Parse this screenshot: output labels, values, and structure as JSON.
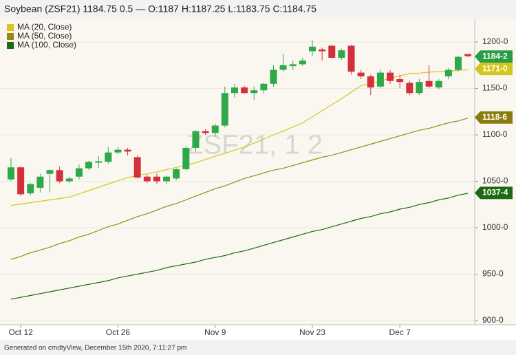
{
  "chart_data": {
    "type": "candlestick",
    "title": "Soybean (ZSF21) 1184.75 0.5 — O:1187 H:1187.25 L:1183.75 C:1184.75",
    "watermark": "ZSF21, 1 2",
    "footer": "Generated on cmdtyView, December 15th 2020, 7:11:27 pm",
    "categories": [
      null,
      "Oct 12",
      null,
      null,
      null,
      null,
      null,
      null,
      null,
      null,
      null,
      "Oct 26",
      null,
      null,
      null,
      null,
      null,
      null,
      null,
      null,
      null,
      "Nov 9",
      null,
      null,
      null,
      null,
      null,
      null,
      null,
      null,
      null,
      "Nov 23",
      null,
      null,
      null,
      null,
      null,
      null,
      null,
      null,
      "Dec 7",
      null,
      null,
      null,
      null,
      null,
      null,
      null
    ],
    "open": [
      1052,
      1065,
      1037,
      1043,
      1058,
      1062,
      1050,
      1055,
      1064,
      1070,
      1071,
      1081,
      1084,
      1076,
      1055,
      1055,
      1050,
      1053,
      1063,
      1086,
      1104,
      1102,
      1110,
      1145,
      1151,
      1145,
      1148,
      1155,
      1170,
      1174,
      1176,
      1190,
      1192,
      1196,
      1183,
      1196,
      1167,
      1163,
      1152,
      1167,
      1160,
      1156,
      1145,
      1158,
      1151,
      1163,
      1170,
      1187
    ],
    "high": [
      1075,
      1066,
      1048,
      1058,
      1063,
      1066,
      1055,
      1068,
      1072,
      1077,
      1087,
      1087,
      1086,
      1078,
      1057,
      1058,
      1056,
      1064,
      1088,
      1105,
      1106,
      1112,
      1152,
      1155,
      1153,
      1152,
      1156,
      1175,
      1187,
      1180,
      1183,
      1202,
      1194,
      1197,
      1193,
      1197,
      1170,
      1165,
      1170,
      1170,
      1165,
      1158,
      1160,
      1175,
      1160,
      1172,
      1185,
      1187.25
    ],
    "low": [
      1050,
      1034,
      1035,
      1038,
      1038,
      1048,
      1048,
      1052,
      1062,
      1064,
      1069,
      1079,
      1078,
      1053,
      1048,
      1047,
      1047,
      1051,
      1062,
      1082,
      1100,
      1098,
      1108,
      1140,
      1144,
      1138,
      1145,
      1152,
      1168,
      1170,
      1174,
      1185,
      1180,
      1182,
      1181,
      1165,
      1160,
      1143,
      1150,
      1155,
      1150,
      1143,
      1143,
      1150,
      1149,
      1160,
      1168,
      1183.75
    ],
    "close": [
      1065,
      1036,
      1047,
      1055,
      1062,
      1050,
      1053,
      1064,
      1071,
      1071.5,
      1081,
      1084,
      1082,
      1054,
      1050,
      1050,
      1055,
      1063,
      1086,
      1104,
      1102,
      1110,
      1145,
      1151,
      1145,
      1148,
      1155,
      1170,
      1175,
      1176,
      1180,
      1195,
      1190,
      1183,
      1191,
      1168,
      1163,
      1151,
      1167,
      1158,
      1157,
      1145,
      1157,
      1152,
      1158,
      1170,
      1184,
      1184.75
    ],
    "up_color": "#2fa84a",
    "down_color": "#d4303c",
    "series": [
      {
        "name": "MA (20, Close)",
        "color": "#d6c51c",
        "values": [
          1024,
          1025.5,
          1027,
          1028.5,
          1030,
          1031.5,
          1033,
          1036.5,
          1040,
          1043.5,
          1047,
          1050.5,
          1054,
          1056,
          1058,
          1060,
          1062.5,
          1065,
          1067,
          1070,
          1073.5,
          1077,
          1080,
          1083.5,
          1087,
          1091,
          1095.5,
          1100,
          1104,
          1108.5,
          1113,
          1119.5,
          1126,
          1132.5,
          1139,
          1146,
          1153,
          1155.5,
          1158,
          1161,
          1163.5,
          1166,
          1166.5,
          1167.5,
          1168,
          1168.5,
          1169.5,
          1170
        ]
      },
      {
        "name": "MA (50, Close)",
        "color": "#978a10",
        "values": [
          966,
          969,
          973,
          976,
          979,
          983,
          986,
          990,
          993,
          997,
          1001,
          1004,
          1008,
          1012,
          1015,
          1019,
          1023,
          1026,
          1030,
          1034,
          1038,
          1042,
          1045,
          1049,
          1053,
          1056,
          1059,
          1062,
          1064,
          1067,
          1070,
          1073,
          1076,
          1078,
          1081,
          1084,
          1087,
          1090,
          1093,
          1096,
          1099,
          1102,
          1105,
          1107,
          1110,
          1113,
          1115,
          1118
        ]
      },
      {
        "name": "MA (100, Close)",
        "color": "#1c6a12",
        "values": [
          923,
          925,
          927,
          929,
          931,
          933,
          935,
          937,
          939,
          941,
          943,
          946,
          948,
          950,
          952,
          954,
          957,
          959,
          961,
          963,
          966,
          968,
          970,
          973,
          975,
          978,
          981,
          984,
          987,
          990,
          993,
          996,
          998,
          1001,
          1004,
          1007,
          1010,
          1012,
          1015,
          1017,
          1020,
          1022,
          1025,
          1027,
          1030,
          1032,
          1035,
          1037
        ]
      }
    ],
    "price_tags": [
      {
        "label": "1184-2",
        "value": 1184.25,
        "color": "#2a9c45"
      },
      {
        "label": "1171-0",
        "value": 1171,
        "color": "#d6c51c"
      },
      {
        "label": "1118-6",
        "value": 1118.75,
        "color": "#8a7c0c"
      },
      {
        "label": "1037-4",
        "value": 1037.5,
        "color": "#1c6a12"
      }
    ],
    "ylim": [
      897,
      1223
    ],
    "yticks": [
      {
        "value": 900,
        "label": "900-0"
      },
      {
        "value": 950,
        "label": "950-0"
      },
      {
        "value": 1000,
        "label": "1000-0"
      },
      {
        "value": 1050,
        "label": "1050-0"
      },
      {
        "value": 1100,
        "label": "1100-0"
      },
      {
        "value": 1150,
        "label": "1150-0"
      },
      {
        "value": 1200,
        "label": "1200-0"
      }
    ],
    "grid": true
  }
}
